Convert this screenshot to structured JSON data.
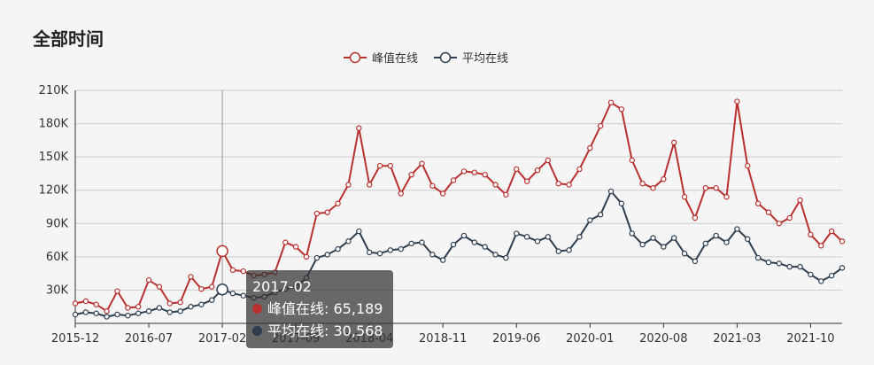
{
  "title": "全部时间",
  "colors": {
    "peak": "#b8312f",
    "avg": "#2c3e50",
    "grid": "#cccccc",
    "axis": "#333333",
    "crosshair": "#999999"
  },
  "legend": [
    {
      "label": "峰值在线",
      "color": "#b8312f"
    },
    {
      "label": "平均在线",
      "color": "#2c3e50"
    }
  ],
  "tooltip": {
    "date": "2017-02",
    "peak_label": "峰值在线:",
    "peak_value": "65,189",
    "avg_label": "平均在线:",
    "avg_value": "30,568"
  },
  "chart_data": {
    "type": "line",
    "title": "全部时间",
    "x_tick_labels": [
      "2015-12",
      "2016-07",
      "2017-02",
      "2017-09",
      "2018-04",
      "2018-11",
      "2019-06",
      "2020-01",
      "2020-08",
      "2021-03",
      "2021-10"
    ],
    "y_tick_labels": [
      "30K",
      "60K",
      "90K",
      "120K",
      "150K",
      "180K",
      "210K"
    ],
    "y_ticks": [
      30000,
      60000,
      90000,
      120000,
      150000,
      180000,
      210000
    ],
    "ylim": [
      0,
      210000
    ],
    "x": [
      "2015-12",
      "2016-01",
      "2016-02",
      "2016-03",
      "2016-04",
      "2016-05",
      "2016-06",
      "2016-07",
      "2016-08",
      "2016-09",
      "2016-10",
      "2016-11",
      "2016-12",
      "2017-01",
      "2017-02",
      "2017-03",
      "2017-04",
      "2017-05",
      "2017-06",
      "2017-07",
      "2017-08",
      "2017-09",
      "2017-10",
      "2017-11",
      "2017-12",
      "2018-01",
      "2018-02",
      "2018-03",
      "2018-04",
      "2018-05",
      "2018-06",
      "2018-07",
      "2018-08",
      "2018-09",
      "2018-10",
      "2018-11",
      "2018-12",
      "2019-01",
      "2019-02",
      "2019-03",
      "2019-04",
      "2019-05",
      "2019-06",
      "2019-07",
      "2019-08",
      "2019-09",
      "2019-10",
      "2019-11",
      "2019-12",
      "2020-01",
      "2020-02",
      "2020-03",
      "2020-04",
      "2020-05",
      "2020-06",
      "2020-07",
      "2020-08",
      "2020-09",
      "2020-10",
      "2020-11",
      "2020-12",
      "2021-01",
      "2021-02",
      "2021-03",
      "2021-04",
      "2021-05",
      "2021-06",
      "2021-07",
      "2021-08",
      "2021-09",
      "2021-10",
      "2021-11",
      "2021-12",
      "2022-01"
    ],
    "grid": true,
    "legend_position": "top-center",
    "series": [
      {
        "name": "峰值在线",
        "color": "#b8312f",
        "values": [
          18000,
          20000,
          17000,
          11000,
          29000,
          14000,
          15000,
          39000,
          33000,
          18000,
          19000,
          42000,
          31000,
          33000,
          65189,
          48000,
          47000,
          43000,
          44000,
          46000,
          73000,
          69000,
          60000,
          99000,
          100000,
          108000,
          125000,
          176000,
          125000,
          142000,
          142000,
          117000,
          134000,
          144000,
          124000,
          117000,
          129000,
          137000,
          136000,
          134000,
          125000,
          116000,
          139000,
          128000,
          138000,
          147000,
          126000,
          125000,
          139000,
          158000,
          178000,
          199000,
          193000,
          147000,
          126000,
          122000,
          130000,
          163000,
          114000,
          95000,
          122000,
          122000,
          114000,
          200000,
          142000,
          108000,
          100000,
          90000,
          95000,
          111000,
          80000,
          70000,
          83000,
          74000
        ]
      },
      {
        "name": "平均在线",
        "color": "#2c3e50",
        "values": [
          8000,
          10000,
          9000,
          6000,
          8000,
          7000,
          9000,
          11000,
          14000,
          10000,
          11000,
          15000,
          17000,
          21000,
          30568,
          27000,
          25000,
          23000,
          24000,
          28000,
          31000,
          33000,
          41000,
          59000,
          62000,
          67000,
          74000,
          83000,
          64000,
          63000,
          66000,
          67000,
          72000,
          73000,
          62000,
          57000,
          71000,
          79000,
          73000,
          69000,
          62000,
          59000,
          81000,
          78000,
          74000,
          78000,
          65000,
          66000,
          78000,
          93000,
          98000,
          119000,
          108000,
          81000,
          71000,
          77000,
          69000,
          77000,
          63000,
          56000,
          72000,
          79000,
          73000,
          85000,
          76000,
          59000,
          55000,
          54000,
          51000,
          51000,
          44000,
          38000,
          43000,
          50000
        ]
      }
    ]
  }
}
